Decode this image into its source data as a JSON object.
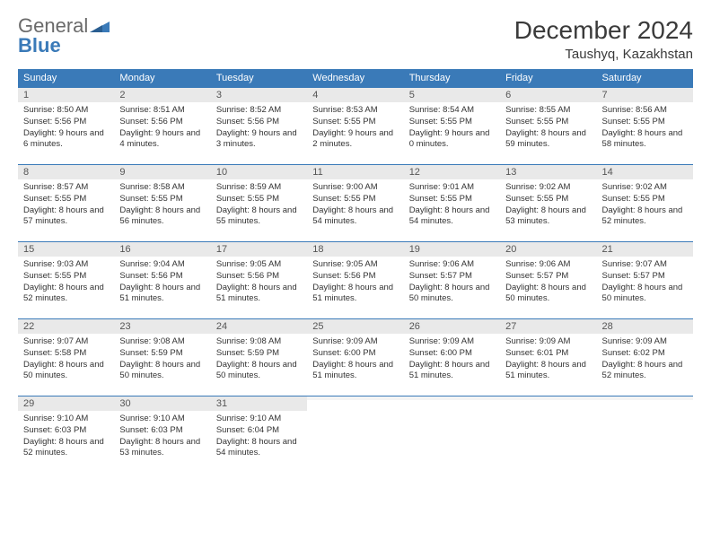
{
  "logo": {
    "word1": "General",
    "word2": "Blue"
  },
  "title": "December 2024",
  "location": "Taushyq, Kazakhstan",
  "colors": {
    "header_bg": "#3a7ab8",
    "header_text": "#ffffff",
    "daynum_bg": "#e9e9e9",
    "border": "#3a7ab8",
    "text": "#333333"
  },
  "day_names": [
    "Sunday",
    "Monday",
    "Tuesday",
    "Wednesday",
    "Thursday",
    "Friday",
    "Saturday"
  ],
  "weeks": [
    [
      {
        "n": "1",
        "sr": "Sunrise: 8:50 AM",
        "ss": "Sunset: 5:56 PM",
        "dl": "Daylight: 9 hours and 6 minutes."
      },
      {
        "n": "2",
        "sr": "Sunrise: 8:51 AM",
        "ss": "Sunset: 5:56 PM",
        "dl": "Daylight: 9 hours and 4 minutes."
      },
      {
        "n": "3",
        "sr": "Sunrise: 8:52 AM",
        "ss": "Sunset: 5:56 PM",
        "dl": "Daylight: 9 hours and 3 minutes."
      },
      {
        "n": "4",
        "sr": "Sunrise: 8:53 AM",
        "ss": "Sunset: 5:55 PM",
        "dl": "Daylight: 9 hours and 2 minutes."
      },
      {
        "n": "5",
        "sr": "Sunrise: 8:54 AM",
        "ss": "Sunset: 5:55 PM",
        "dl": "Daylight: 9 hours and 0 minutes."
      },
      {
        "n": "6",
        "sr": "Sunrise: 8:55 AM",
        "ss": "Sunset: 5:55 PM",
        "dl": "Daylight: 8 hours and 59 minutes."
      },
      {
        "n": "7",
        "sr": "Sunrise: 8:56 AM",
        "ss": "Sunset: 5:55 PM",
        "dl": "Daylight: 8 hours and 58 minutes."
      }
    ],
    [
      {
        "n": "8",
        "sr": "Sunrise: 8:57 AM",
        "ss": "Sunset: 5:55 PM",
        "dl": "Daylight: 8 hours and 57 minutes."
      },
      {
        "n": "9",
        "sr": "Sunrise: 8:58 AM",
        "ss": "Sunset: 5:55 PM",
        "dl": "Daylight: 8 hours and 56 minutes."
      },
      {
        "n": "10",
        "sr": "Sunrise: 8:59 AM",
        "ss": "Sunset: 5:55 PM",
        "dl": "Daylight: 8 hours and 55 minutes."
      },
      {
        "n": "11",
        "sr": "Sunrise: 9:00 AM",
        "ss": "Sunset: 5:55 PM",
        "dl": "Daylight: 8 hours and 54 minutes."
      },
      {
        "n": "12",
        "sr": "Sunrise: 9:01 AM",
        "ss": "Sunset: 5:55 PM",
        "dl": "Daylight: 8 hours and 54 minutes."
      },
      {
        "n": "13",
        "sr": "Sunrise: 9:02 AM",
        "ss": "Sunset: 5:55 PM",
        "dl": "Daylight: 8 hours and 53 minutes."
      },
      {
        "n": "14",
        "sr": "Sunrise: 9:02 AM",
        "ss": "Sunset: 5:55 PM",
        "dl": "Daylight: 8 hours and 52 minutes."
      }
    ],
    [
      {
        "n": "15",
        "sr": "Sunrise: 9:03 AM",
        "ss": "Sunset: 5:55 PM",
        "dl": "Daylight: 8 hours and 52 minutes."
      },
      {
        "n": "16",
        "sr": "Sunrise: 9:04 AM",
        "ss": "Sunset: 5:56 PM",
        "dl": "Daylight: 8 hours and 51 minutes."
      },
      {
        "n": "17",
        "sr": "Sunrise: 9:05 AM",
        "ss": "Sunset: 5:56 PM",
        "dl": "Daylight: 8 hours and 51 minutes."
      },
      {
        "n": "18",
        "sr": "Sunrise: 9:05 AM",
        "ss": "Sunset: 5:56 PM",
        "dl": "Daylight: 8 hours and 51 minutes."
      },
      {
        "n": "19",
        "sr": "Sunrise: 9:06 AM",
        "ss": "Sunset: 5:57 PM",
        "dl": "Daylight: 8 hours and 50 minutes."
      },
      {
        "n": "20",
        "sr": "Sunrise: 9:06 AM",
        "ss": "Sunset: 5:57 PM",
        "dl": "Daylight: 8 hours and 50 minutes."
      },
      {
        "n": "21",
        "sr": "Sunrise: 9:07 AM",
        "ss": "Sunset: 5:57 PM",
        "dl": "Daylight: 8 hours and 50 minutes."
      }
    ],
    [
      {
        "n": "22",
        "sr": "Sunrise: 9:07 AM",
        "ss": "Sunset: 5:58 PM",
        "dl": "Daylight: 8 hours and 50 minutes."
      },
      {
        "n": "23",
        "sr": "Sunrise: 9:08 AM",
        "ss": "Sunset: 5:59 PM",
        "dl": "Daylight: 8 hours and 50 minutes."
      },
      {
        "n": "24",
        "sr": "Sunrise: 9:08 AM",
        "ss": "Sunset: 5:59 PM",
        "dl": "Daylight: 8 hours and 50 minutes."
      },
      {
        "n": "25",
        "sr": "Sunrise: 9:09 AM",
        "ss": "Sunset: 6:00 PM",
        "dl": "Daylight: 8 hours and 51 minutes."
      },
      {
        "n": "26",
        "sr": "Sunrise: 9:09 AM",
        "ss": "Sunset: 6:00 PM",
        "dl": "Daylight: 8 hours and 51 minutes."
      },
      {
        "n": "27",
        "sr": "Sunrise: 9:09 AM",
        "ss": "Sunset: 6:01 PM",
        "dl": "Daylight: 8 hours and 51 minutes."
      },
      {
        "n": "28",
        "sr": "Sunrise: 9:09 AM",
        "ss": "Sunset: 6:02 PM",
        "dl": "Daylight: 8 hours and 52 minutes."
      }
    ],
    [
      {
        "n": "29",
        "sr": "Sunrise: 9:10 AM",
        "ss": "Sunset: 6:03 PM",
        "dl": "Daylight: 8 hours and 52 minutes."
      },
      {
        "n": "30",
        "sr": "Sunrise: 9:10 AM",
        "ss": "Sunset: 6:03 PM",
        "dl": "Daylight: 8 hours and 53 minutes."
      },
      {
        "n": "31",
        "sr": "Sunrise: 9:10 AM",
        "ss": "Sunset: 6:04 PM",
        "dl": "Daylight: 8 hours and 54 minutes."
      },
      {
        "n": "",
        "sr": "",
        "ss": "",
        "dl": ""
      },
      {
        "n": "",
        "sr": "",
        "ss": "",
        "dl": ""
      },
      {
        "n": "",
        "sr": "",
        "ss": "",
        "dl": ""
      },
      {
        "n": "",
        "sr": "",
        "ss": "",
        "dl": ""
      }
    ]
  ]
}
